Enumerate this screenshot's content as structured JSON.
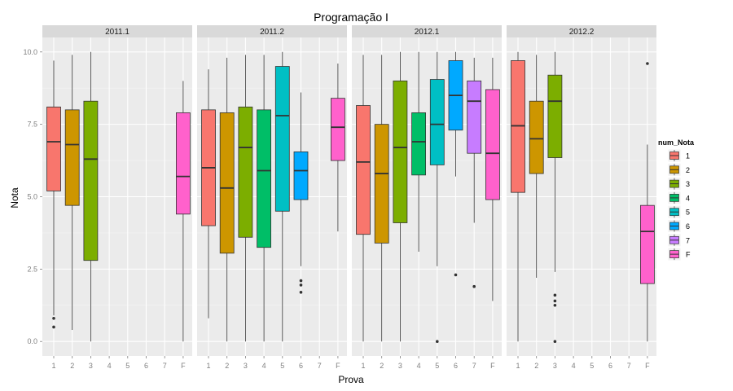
{
  "chart_data": {
    "type": "boxplot",
    "title": "Programação I",
    "xlabel": "Prova",
    "ylabel": "Nota",
    "ylim": [
      -0.5,
      10.5
    ],
    "y_ticks": [
      "0.0",
      "2.5",
      "5.0",
      "7.5",
      "10.0"
    ],
    "y_tick_values": [
      0,
      2.5,
      5,
      7.5,
      10
    ],
    "categories": [
      "1",
      "2",
      "3",
      "4",
      "5",
      "6",
      "7",
      "F"
    ],
    "grid": true,
    "legend": {
      "title": "num_Nota",
      "position": "right",
      "entries": [
        "1",
        "2",
        "3",
        "4",
        "5",
        "6",
        "7",
        "F"
      ],
      "colors": [
        "#F8766D",
        "#CD9600",
        "#7CAE00",
        "#00BE67",
        "#00BFC4",
        "#00A9FF",
        "#C77CFF",
        "#FF61CC"
      ]
    },
    "facets": [
      {
        "label": "2011.1",
        "boxes": [
          {
            "cat": "1",
            "min": 0.9,
            "q1": 5.2,
            "median": 6.9,
            "q3": 8.1,
            "max": 9.7,
            "outliers": [
              0.8,
              0.5
            ]
          },
          {
            "cat": "2",
            "min": 0.4,
            "q1": 4.7,
            "median": 6.8,
            "q3": 8.0,
            "max": 9.9,
            "outliers": []
          },
          {
            "cat": "3",
            "min": 0.0,
            "q1": 2.8,
            "median": 6.3,
            "q3": 8.3,
            "max": 10.0,
            "outliers": []
          },
          {
            "cat": "F",
            "min": 0.0,
            "q1": 4.4,
            "median": 5.7,
            "q3": 7.9,
            "max": 9.0,
            "outliers": []
          }
        ]
      },
      {
        "label": "2011.2",
        "boxes": [
          {
            "cat": "1",
            "min": 0.8,
            "q1": 4.0,
            "median": 6.0,
            "q3": 8.0,
            "max": 9.4,
            "outliers": []
          },
          {
            "cat": "2",
            "min": 0.0,
            "q1": 3.05,
            "median": 5.3,
            "q3": 7.9,
            "max": 9.8,
            "outliers": []
          },
          {
            "cat": "3",
            "min": 0.0,
            "q1": 3.6,
            "median": 6.7,
            "q3": 8.1,
            "max": 9.9,
            "outliers": []
          },
          {
            "cat": "4",
            "min": 0.0,
            "q1": 3.25,
            "median": 5.9,
            "q3": 8.0,
            "max": 9.9,
            "outliers": []
          },
          {
            "cat": "5",
            "min": 0.0,
            "q1": 4.5,
            "median": 7.8,
            "q3": 9.5,
            "max": 10.0,
            "outliers": []
          },
          {
            "cat": "6",
            "min": 2.6,
            "q1": 4.9,
            "median": 5.9,
            "q3": 6.55,
            "max": 8.6,
            "outliers": [
              2.1,
              1.95,
              1.7
            ]
          },
          {
            "cat": "F",
            "min": 3.8,
            "q1": 6.25,
            "median": 7.4,
            "q3": 8.4,
            "max": 9.6,
            "outliers": []
          }
        ]
      },
      {
        "label": "2012.1",
        "boxes": [
          {
            "cat": "1",
            "min": 0.0,
            "q1": 3.7,
            "median": 6.2,
            "q3": 8.15,
            "max": 9.9,
            "outliers": []
          },
          {
            "cat": "2",
            "min": 0.0,
            "q1": 3.4,
            "median": 5.8,
            "q3": 7.5,
            "max": 9.9,
            "outliers": []
          },
          {
            "cat": "3",
            "min": 0.0,
            "q1": 4.1,
            "median": 6.7,
            "q3": 9.0,
            "max": 10.0,
            "outliers": []
          },
          {
            "cat": "4",
            "min": 3.1,
            "q1": 5.75,
            "median": 6.9,
            "q3": 7.9,
            "max": 10.0,
            "outliers": []
          },
          {
            "cat": "5",
            "min": 2.6,
            "q1": 6.1,
            "median": 7.5,
            "q3": 9.05,
            "max": 10.0,
            "outliers": [
              0.0
            ]
          },
          {
            "cat": "6",
            "min": 5.7,
            "q1": 7.3,
            "median": 8.5,
            "q3": 9.7,
            "max": 10.0,
            "outliers": [
              2.3
            ]
          },
          {
            "cat": "7",
            "min": 4.1,
            "q1": 6.5,
            "median": 8.3,
            "q3": 9.0,
            "max": 9.8,
            "outliers": [
              1.9
            ]
          },
          {
            "cat": "F",
            "min": 1.4,
            "q1": 4.9,
            "median": 6.5,
            "q3": 8.7,
            "max": 9.8,
            "outliers": []
          }
        ]
      },
      {
        "label": "2012.2",
        "boxes": [
          {
            "cat": "1",
            "min": 0.0,
            "q1": 5.15,
            "median": 7.45,
            "q3": 9.7,
            "max": 10.0,
            "outliers": []
          },
          {
            "cat": "2",
            "min": 2.2,
            "q1": 5.8,
            "median": 7.0,
            "q3": 8.3,
            "max": 9.9,
            "outliers": []
          },
          {
            "cat": "3",
            "min": 2.4,
            "q1": 6.35,
            "median": 8.3,
            "q3": 9.2,
            "max": 10.0,
            "outliers": [
              1.6,
              1.4,
              1.25,
              0.0
            ]
          },
          {
            "cat": "F",
            "min": 0.0,
            "q1": 2.0,
            "median": 3.8,
            "q3": 4.7,
            "max": 6.8,
            "outliers": [
              9.6
            ]
          }
        ]
      }
    ]
  }
}
